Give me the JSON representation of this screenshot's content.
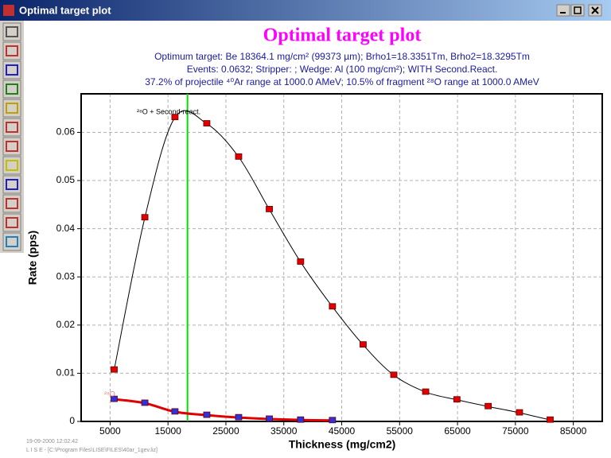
{
  "window": {
    "title": "Optimal target plot"
  },
  "footer": {
    "timestamp": "19-09-2000  12:02:42",
    "file": "L I S E - [C:\\Program Files\\LISE\\FILES\\40ar_1gev.liz]"
  },
  "chart_data": {
    "type": "line",
    "title": "Optimal target plot",
    "subtitles": [
      "Optimum target: Be 18364.1 mg/cm² (99373 µm);  Brho1=18.3351Tm, Brho2=18.3295Tm",
      "Events: 0.0632;  Stripper:  ;  Wedge: Al (100 mg/cm²);  WITH Second.React.",
      "37.2% of projectile ⁴⁰Ar range at 1000.0 AMeV; 10.5% of fragment ²⁸O  range at 1000.0 AMeV"
    ],
    "x_label": "Thickness (mg/cm2)",
    "y_label": "Rate (pps)",
    "xlim": [
      0,
      90000
    ],
    "xticks": [
      5000,
      15000,
      25000,
      35000,
      45000,
      55000,
      65000,
      75000,
      85000
    ],
    "ylim": [
      0,
      0.068
    ],
    "yticks": [
      0,
      0.01,
      0.02,
      0.03,
      0.04,
      0.05,
      0.06
    ],
    "grid": true,
    "optimum_x": 18364.1,
    "optimum_color": "#00e000",
    "series": [
      {
        "name": "²⁸O + Second-react.",
        "color": "#000000",
        "marker_color": "#e00000",
        "x": [
          5700,
          11000,
          16200,
          21700,
          27200,
          32500,
          37900,
          43400,
          48700,
          54000,
          59500,
          64900,
          70300,
          75700,
          81000
        ],
        "values": [
          0.0107,
          0.0423,
          0.0631,
          0.0618,
          0.0549,
          0.044,
          0.0331,
          0.0238,
          0.0159,
          0.0096,
          0.0061,
          0.0045,
          0.0031,
          0.0018,
          0.0003
        ]
      },
      {
        "name": "²⁸O",
        "color": "#e00000",
        "marker_color": "#3030e0",
        "x": [
          5700,
          11000,
          16200,
          21700,
          27200,
          32500,
          37900,
          43400
        ],
        "values": [
          0.0046,
          0.0038,
          0.002,
          0.0013,
          0.0008,
          0.0005,
          0.0003,
          0.0002
        ]
      }
    ]
  }
}
